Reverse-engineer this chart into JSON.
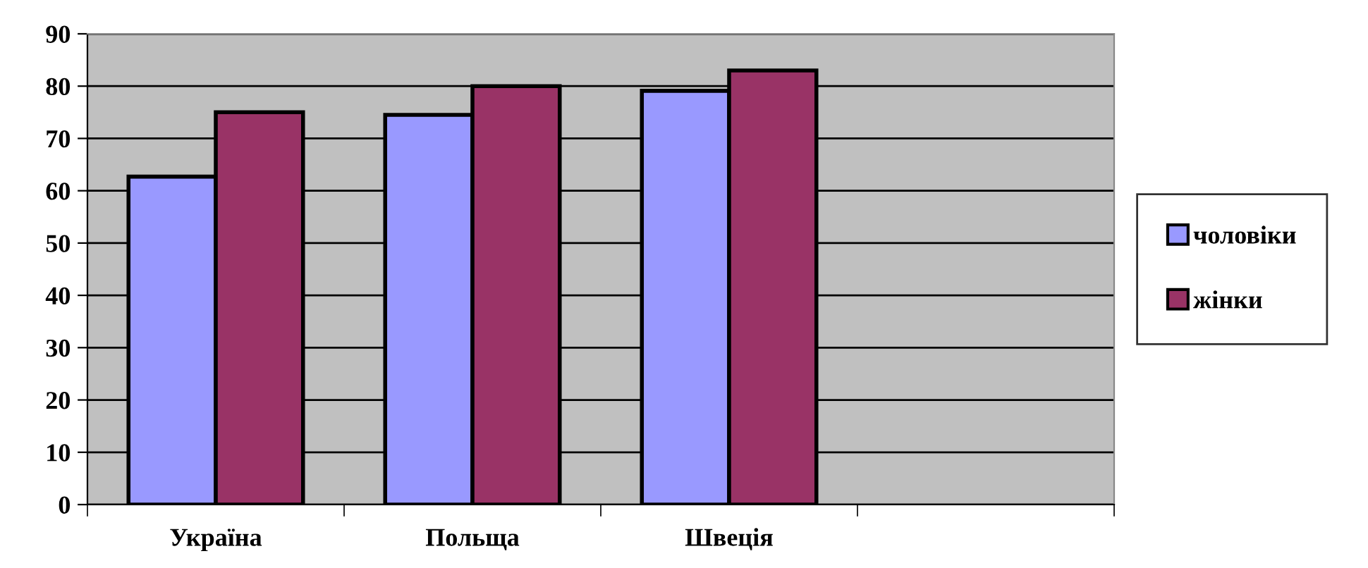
{
  "chart_data": {
    "type": "bar",
    "categories": [
      "Україна",
      "Польща",
      "Швеція",
      null
    ],
    "series": [
      {
        "name": "чоловіки",
        "color": "#9999ff",
        "values": [
          62.7,
          74.5,
          79.1,
          null
        ]
      },
      {
        "name": "жінки",
        "color": "#993366",
        "values": [
          75,
          80,
          83,
          null
        ]
      }
    ],
    "ylim": [
      0,
      90
    ],
    "yticks": [
      0,
      10,
      20,
      30,
      40,
      50,
      60,
      70,
      80,
      90
    ],
    "grid": "y",
    "legend": "right"
  }
}
